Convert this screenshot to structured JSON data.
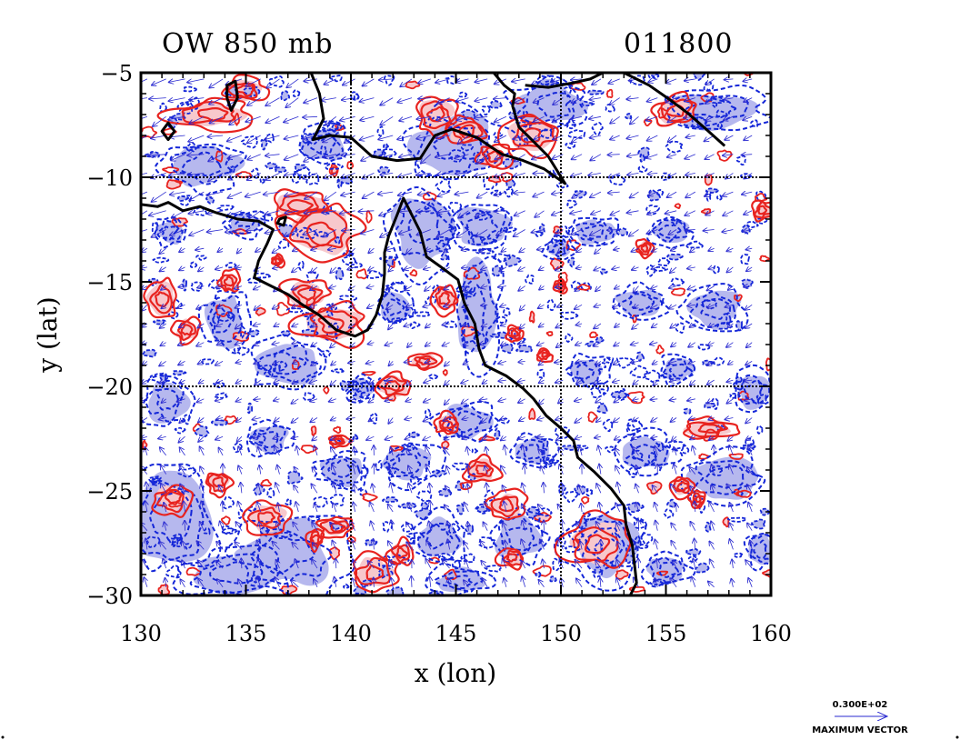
{
  "chart_data": {
    "type": "contour",
    "title": "OW 850 mb",
    "subtitle": "011800",
    "xlabel": "x (lon)",
    "ylabel": "y (lat)",
    "xlim": [
      130,
      160
    ],
    "ylim": [
      -30,
      -5
    ],
    "xticks": [
      130,
      135,
      140,
      145,
      150,
      155,
      160
    ],
    "yticks": [
      -5,
      -10,
      -15,
      -20,
      -25,
      -30
    ],
    "xtick_labels": [
      "130",
      "135",
      "140",
      "145",
      "150",
      "155",
      "160"
    ],
    "ytick_labels": [
      "−5",
      "−10",
      "−15",
      "−20",
      "−25",
      "−30"
    ],
    "grid_dotted_x": [
      140,
      150
    ],
    "grid_dotted_y": [
      -10,
      -20
    ],
    "vector_key": {
      "value_label": "0.300E+02",
      "caption": "MAXIMUM  VECTOR"
    },
    "colors": {
      "positive_contour": "#e8231f",
      "positive_fill": "#f7c8cc",
      "negative_contour": "#1426d8",
      "negative_fill": "#b6b8ee",
      "vector": "#2a2ad0",
      "coastline": "#000000"
    },
    "coastline_mainland": [
      [
        130.0,
        -11.3
      ],
      [
        130.8,
        -11.4
      ],
      [
        131.3,
        -11.2
      ],
      [
        132.0,
        -11.6
      ],
      [
        132.8,
        -11.4
      ],
      [
        133.6,
        -11.7
      ],
      [
        134.6,
        -12.0
      ],
      [
        135.6,
        -12.1
      ],
      [
        136.3,
        -12.5
      ],
      [
        136.0,
        -13.2
      ],
      [
        135.6,
        -14.0
      ],
      [
        135.4,
        -14.8
      ],
      [
        136.2,
        -15.2
      ],
      [
        137.0,
        -15.6
      ],
      [
        137.7,
        -16.1
      ],
      [
        138.5,
        -16.6
      ],
      [
        139.3,
        -17.3
      ],
      [
        140.2,
        -17.6
      ],
      [
        140.8,
        -17.3
      ],
      [
        141.2,
        -16.6
      ],
      [
        141.5,
        -15.6
      ],
      [
        141.6,
        -14.6
      ],
      [
        141.6,
        -13.6
      ],
      [
        141.8,
        -12.8
      ],
      [
        142.2,
        -11.8
      ],
      [
        142.5,
        -11.0
      ],
      [
        142.8,
        -11.6
      ],
      [
        143.3,
        -12.6
      ],
      [
        143.6,
        -13.8
      ],
      [
        144.3,
        -14.3
      ],
      [
        145.1,
        -14.9
      ],
      [
        145.4,
        -16.0
      ],
      [
        145.9,
        -17.0
      ],
      [
        146.1,
        -18.2
      ],
      [
        146.4,
        -19.0
      ],
      [
        147.4,
        -19.5
      ],
      [
        148.2,
        -20.1
      ],
      [
        148.7,
        -20.6
      ],
      [
        149.3,
        -21.4
      ],
      [
        150.0,
        -22.0
      ],
      [
        150.6,
        -22.6
      ],
      [
        150.8,
        -23.4
      ],
      [
        151.6,
        -24.1
      ],
      [
        152.4,
        -24.9
      ],
      [
        153.0,
        -25.7
      ],
      [
        153.1,
        -26.6
      ],
      [
        153.4,
        -27.6
      ],
      [
        153.5,
        -28.5
      ],
      [
        153.6,
        -29.4
      ],
      [
        153.3,
        -30.0
      ]
    ],
    "coastline_newguinea": [
      [
        138.1,
        -5.0
      ],
      [
        138.5,
        -6.0
      ],
      [
        138.7,
        -7.2
      ],
      [
        138.2,
        -8.2
      ],
      [
        139.0,
        -8.0
      ],
      [
        140.0,
        -8.1
      ],
      [
        141.0,
        -9.0
      ],
      [
        142.2,
        -9.2
      ],
      [
        143.3,
        -9.1
      ],
      [
        144.0,
        -8.0
      ],
      [
        144.8,
        -7.7
      ],
      [
        146.0,
        -8.1
      ],
      [
        147.2,
        -8.9
      ],
      [
        148.2,
        -9.2
      ],
      [
        149.2,
        -9.6
      ],
      [
        150.2,
        -10.3
      ],
      [
        149.4,
        -9.0
      ],
      [
        148.6,
        -8.2
      ],
      [
        148.0,
        -7.6
      ],
      [
        147.7,
        -6.6
      ],
      [
        147.8,
        -6.0
      ],
      [
        147.3,
        -5.6
      ],
      [
        146.8,
        -5.0
      ]
    ],
    "coastline_newbritain": [
      [
        148.3,
        -5.6
      ],
      [
        149.4,
        -5.7
      ],
      [
        150.5,
        -5.5
      ],
      [
        151.4,
        -5.3
      ],
      [
        152.2,
        -4.9
      ]
    ],
    "coastline_bougainville": [
      [
        153.0,
        -5.0
      ],
      [
        154.2,
        -5.6
      ],
      [
        155.2,
        -6.3
      ],
      [
        156.0,
        -6.9
      ],
      [
        156.8,
        -7.6
      ],
      [
        157.8,
        -8.5
      ]
    ],
    "coastline_islands": [
      [
        [
          134.1,
          -5.6
        ],
        [
          134.5,
          -5.4
        ],
        [
          134.6,
          -6.2
        ],
        [
          134.3,
          -6.8
        ],
        [
          134.1,
          -6.2
        ],
        [
          134.1,
          -5.6
        ]
      ],
      [
        [
          131.3,
          -7.4
        ],
        [
          131.6,
          -7.8
        ],
        [
          131.3,
          -8.2
        ],
        [
          131.0,
          -7.8
        ],
        [
          131.3,
          -7.4
        ]
      ],
      [
        [
          136.6,
          -12.0
        ],
        [
          136.9,
          -11.9
        ],
        [
          136.8,
          -12.3
        ],
        [
          136.5,
          -12.2
        ],
        [
          136.6,
          -12.0
        ]
      ]
    ],
    "positive_regions": [
      [
        138.6,
        -12.6,
        1.8,
        1.4
      ],
      [
        137.6,
        -11.3,
        1.4,
        0.7
      ],
      [
        139.2,
        -17.0,
        1.7,
        1.0
      ],
      [
        137.9,
        -15.6,
        1.1,
        0.7
      ],
      [
        133.3,
        -7.0,
        2.0,
        0.7
      ],
      [
        131.0,
        -15.8,
        0.8,
        1.0
      ],
      [
        132.2,
        -17.3,
        0.6,
        0.6
      ],
      [
        135.0,
        -5.8,
        1.0,
        0.6
      ],
      [
        144.0,
        -7.0,
        1.0,
        0.9
      ],
      [
        145.5,
        -7.8,
        0.9,
        0.7
      ],
      [
        146.8,
        -9.0,
        0.8,
        0.6
      ],
      [
        148.6,
        -8.0,
        1.3,
        0.9
      ],
      [
        155.5,
        -6.8,
        1.0,
        0.8
      ],
      [
        159.6,
        -11.6,
        0.5,
        0.5
      ],
      [
        154.0,
        -13.4,
        0.4,
        0.4
      ],
      [
        157.0,
        -22.0,
        1.3,
        0.5
      ],
      [
        155.8,
        -24.8,
        0.6,
        0.5
      ],
      [
        156.5,
        -25.4,
        0.4,
        0.4
      ],
      [
        151.7,
        -27.5,
        1.6,
        1.2
      ],
      [
        147.4,
        -25.7,
        0.9,
        0.7
      ],
      [
        146.2,
        -24.0,
        0.8,
        0.6
      ],
      [
        144.6,
        -21.8,
        0.6,
        0.5
      ],
      [
        141.1,
        -28.9,
        1.1,
        0.9
      ],
      [
        139.3,
        -26.7,
        0.9,
        0.5
      ],
      [
        142.4,
        -28.0,
        0.6,
        0.6
      ],
      [
        136.0,
        -26.3,
        1.1,
        0.8
      ],
      [
        131.5,
        -25.4,
        0.9,
        0.8
      ],
      [
        133.7,
        -24.6,
        0.6,
        0.6
      ],
      [
        142.0,
        -20.0,
        0.9,
        0.6
      ],
      [
        147.7,
        -28.2,
        0.6,
        0.5
      ],
      [
        143.5,
        -18.8,
        0.7,
        0.4
      ],
      [
        147.8,
        -17.5,
        0.4,
        0.4
      ],
      [
        134.2,
        -15.0,
        0.5,
        0.5
      ],
      [
        144.5,
        -15.8,
        0.7,
        0.7
      ],
      [
        139.4,
        -22.6,
        0.5,
        0.3
      ],
      [
        138.3,
        -27.3,
        0.4,
        0.5
      ],
      [
        136.5,
        -14.0,
        0.3,
        0.3
      ],
      [
        150.0,
        -15.2,
        0.3,
        0.3
      ],
      [
        149.2,
        -18.5,
        0.4,
        0.3
      ]
    ],
    "negative_regions": [
      [
        131.5,
        -26.3,
        2.2,
        2.6
      ],
      [
        137.0,
        -28.0,
        2.8,
        1.9
      ],
      [
        134.5,
        -29.0,
        2.8,
        1.2
      ],
      [
        146.0,
        -16.3,
        1.2,
        2.6
      ],
      [
        145.0,
        -8.5,
        2.5,
        1.8
      ],
      [
        149.5,
        -6.5,
        2.0,
        1.3
      ],
      [
        157.2,
        -6.8,
        2.6,
        1.0
      ],
      [
        143.4,
        -12.5,
        1.8,
        2.0
      ],
      [
        137.0,
        -19.0,
        1.8,
        1.2
      ],
      [
        134.0,
        -16.8,
        1.1,
        1.5
      ],
      [
        131.2,
        -20.7,
        1.2,
        1.2
      ],
      [
        152.2,
        -27.5,
        1.9,
        1.8
      ],
      [
        154.0,
        -23.2,
        1.4,
        1.0
      ],
      [
        157.8,
        -24.4,
        2.0,
        1.2
      ],
      [
        159.2,
        -20.2,
        1.0,
        1.0
      ],
      [
        157.3,
        -16.3,
        1.6,
        1.1
      ],
      [
        153.7,
        -16.0,
        1.3,
        0.8
      ],
      [
        155.2,
        -12.6,
        1.1,
        0.7
      ],
      [
        151.6,
        -12.6,
        1.2,
        0.7
      ],
      [
        146.3,
        -12.3,
        1.6,
        1.2
      ],
      [
        145.6,
        -21.7,
        1.5,
        1.0
      ],
      [
        142.7,
        -23.7,
        1.4,
        1.0
      ],
      [
        148.0,
        -27.2,
        1.4,
        1.3
      ],
      [
        144.2,
        -27.3,
        1.3,
        1.2
      ],
      [
        139.6,
        -24.0,
        1.3,
        0.9
      ],
      [
        136.1,
        -22.5,
        1.1,
        0.8
      ],
      [
        133.0,
        -9.4,
        2.0,
        1.2
      ],
      [
        138.7,
        -8.4,
        1.3,
        1.0
      ],
      [
        151.2,
        -19.3,
        1.0,
        0.8
      ],
      [
        155.6,
        -19.2,
        0.9,
        0.7
      ],
      [
        148.7,
        -23.1,
        1.0,
        0.8
      ],
      [
        142.1,
        -16.2,
        0.9,
        0.9
      ],
      [
        134.9,
        -12.2,
        1.0,
        0.6
      ],
      [
        131.4,
        -12.6,
        0.8,
        0.7
      ],
      [
        140.5,
        -20.1,
        0.7,
        0.6
      ],
      [
        159.5,
        -27.8,
        0.7,
        0.9
      ],
      [
        155.0,
        -28.8,
        1.1,
        0.8
      ],
      [
        149.9,
        -13.4,
        0.7,
        0.5
      ],
      [
        145.2,
        -29.3,
        1.4,
        0.7
      ]
    ]
  }
}
